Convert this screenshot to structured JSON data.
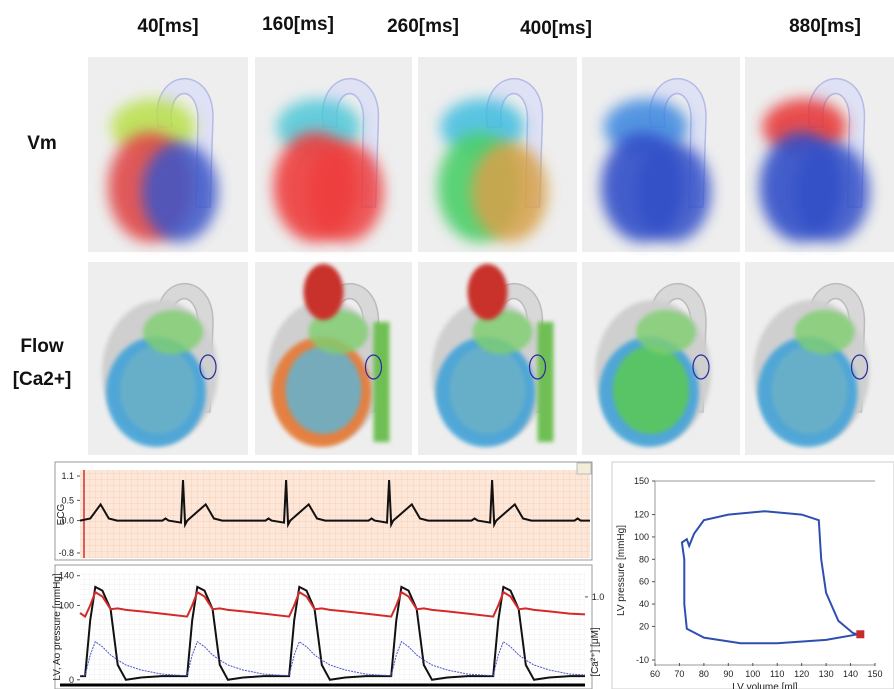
{
  "columns": [
    "40[ms]",
    "160[ms]",
    "260[ms]",
    "400[ms]",
    "880[ms]"
  ],
  "rows": [
    [
      "Vm"
    ],
    [
      "Flow",
      "[Ca2+]"
    ]
  ],
  "chart_data": [
    {
      "type": "line",
      "y_label": "ECG",
      "x": [
        0,
        0.1,
        0.2,
        0.28,
        0.36,
        0.8,
        0.83,
        0.86,
        0.98,
        1,
        1.02,
        1.04,
        1.22,
        1.3,
        1.38,
        1.8,
        1.83,
        1.86,
        1.98,
        2,
        2.02,
        2.04,
        2.22,
        2.3,
        2.38,
        2.8,
        2.83,
        2.86,
        2.98,
        3,
        3.02,
        3.04,
        3.22,
        3.3,
        3.38,
        3.8,
        3.83,
        3.86,
        3.98,
        4,
        4.02,
        4.04,
        4.22,
        4.3,
        4.38,
        4.8,
        4.83,
        4.86,
        4.95
      ],
      "xlim": [
        0,
        4.95
      ],
      "ylim": [
        -0.85,
        1.15
      ],
      "yticks": [
        1.1,
        0.5,
        {
          "value": 0,
          "label": "0.0"
        },
        -0.8
      ],
      "series": [
        {
          "color": "#111111",
          "values": [
            0,
            0.05,
            0.4,
            0.05,
            0,
            0,
            0.05,
            0,
            -0.05,
            1,
            -0.1,
            0,
            0.4,
            0.05,
            0,
            0,
            0.05,
            0,
            -0.05,
            1,
            -0.1,
            0,
            0.4,
            0.05,
            0,
            0,
            0.05,
            0,
            -0.05,
            1,
            -0.1,
            0,
            0.4,
            0.05,
            0,
            0,
            0.05,
            0,
            -0.05,
            1,
            -0.1,
            0,
            0.4,
            0.05,
            0,
            0,
            0.05,
            0,
            0
          ]
        }
      ]
    },
    {
      "type": "line",
      "y_label": "LV, Ao pressure [mmHg]",
      "y2_label": "[Ca²⁺] [μM]",
      "x": [
        0,
        0.05,
        0.1,
        0.15,
        0.22,
        0.3,
        0.37,
        0.45,
        0.6,
        0.8,
        1.05,
        1.1,
        1.15,
        1.22,
        1.3,
        1.37,
        1.45,
        1.6,
        1.8,
        2.05,
        2.1,
        2.15,
        2.22,
        2.3,
        2.37,
        2.45,
        2.6,
        2.8,
        3.05,
        3.1,
        3.15,
        3.22,
        3.3,
        3.37,
        3.45,
        3.6,
        3.8,
        4.05,
        4.1,
        4.15,
        4.22,
        4.3,
        4.37,
        4.45,
        4.6,
        4.8,
        4.95
      ],
      "xlim": [
        0,
        4.95
      ],
      "ylim": [
        -3,
        145
      ],
      "yticks": [
        0,
        100,
        140
      ],
      "y2lim": [
        -0.025,
        1.3
      ],
      "y2ticks": [
        {
          "value": 1,
          "label": "1.0"
        }
      ],
      "series": [
        {
          "color": "#111111",
          "values": [
            5,
            5,
            80,
            125,
            120,
            95,
            20,
            0,
            3,
            5,
            5,
            80,
            125,
            120,
            95,
            20,
            0,
            3,
            5,
            5,
            80,
            125,
            120,
            95,
            20,
            0,
            3,
            5,
            5,
            80,
            125,
            120,
            95,
            20,
            0,
            3,
            5,
            5,
            80,
            125,
            120,
            95,
            20,
            0,
            3,
            5,
            5
          ]
        },
        {
          "color": "#d42a2a",
          "values": [
            90,
            85,
            100,
            118,
            112,
            95,
            96,
            94,
            92,
            89,
            85,
            100,
            118,
            112,
            95,
            96,
            94,
            92,
            89,
            85,
            100,
            118,
            112,
            95,
            96,
            94,
            92,
            89,
            85,
            100,
            118,
            112,
            95,
            96,
            94,
            92,
            89,
            85,
            100,
            118,
            112,
            95,
            96,
            94,
            92,
            89,
            88
          ]
        },
        {
          "color": "#4a55c8",
          "axis": "y2",
          "values": [
            0.05,
            0.05,
            0.3,
            0.46,
            0.4,
            0.3,
            0.24,
            0.18,
            0.12,
            0.07,
            0.05,
            0.3,
            0.46,
            0.4,
            0.3,
            0.24,
            0.18,
            0.12,
            0.07,
            0.05,
            0.3,
            0.46,
            0.4,
            0.3,
            0.24,
            0.18,
            0.12,
            0.07,
            0.05,
            0.3,
            0.46,
            0.4,
            0.3,
            0.24,
            0.18,
            0.12,
            0.07,
            0.05,
            0.3,
            0.46,
            0.4,
            0.3,
            0.24,
            0.18,
            0.12,
            0.07,
            0.06
          ]
        }
      ]
    },
    {
      "type": "line",
      "y_label": "LV pressure [mmHg]",
      "x_label": "LV volume [ml]",
      "xlim": [
        60,
        150
      ],
      "xticks": [
        60,
        70,
        80,
        90,
        100,
        110,
        120,
        130,
        140,
        150
      ],
      "ylim": [
        -10,
        150
      ],
      "yticks": [
        -10,
        20,
        40,
        60,
        80,
        100,
        120,
        150
      ],
      "series": [
        {
          "color": "#2f4fb0",
          "x": [
            143,
            130,
            110,
            95,
            80,
            73,
            72,
            72,
            71,
            73,
            74,
            76,
            80,
            90,
            105,
            120,
            127,
            128,
            130,
            135,
            141,
            143
          ],
          "values": [
            13,
            8,
            5,
            5,
            10,
            18,
            40,
            80,
            95,
            98,
            92,
            103,
            115,
            120,
            123,
            120,
            115,
            80,
            50,
            25,
            14,
            13
          ]
        },
        {
          "color": "#c62a2a",
          "marker": "square",
          "x": [
            144
          ],
          "values": [
            13
          ]
        }
      ]
    }
  ]
}
